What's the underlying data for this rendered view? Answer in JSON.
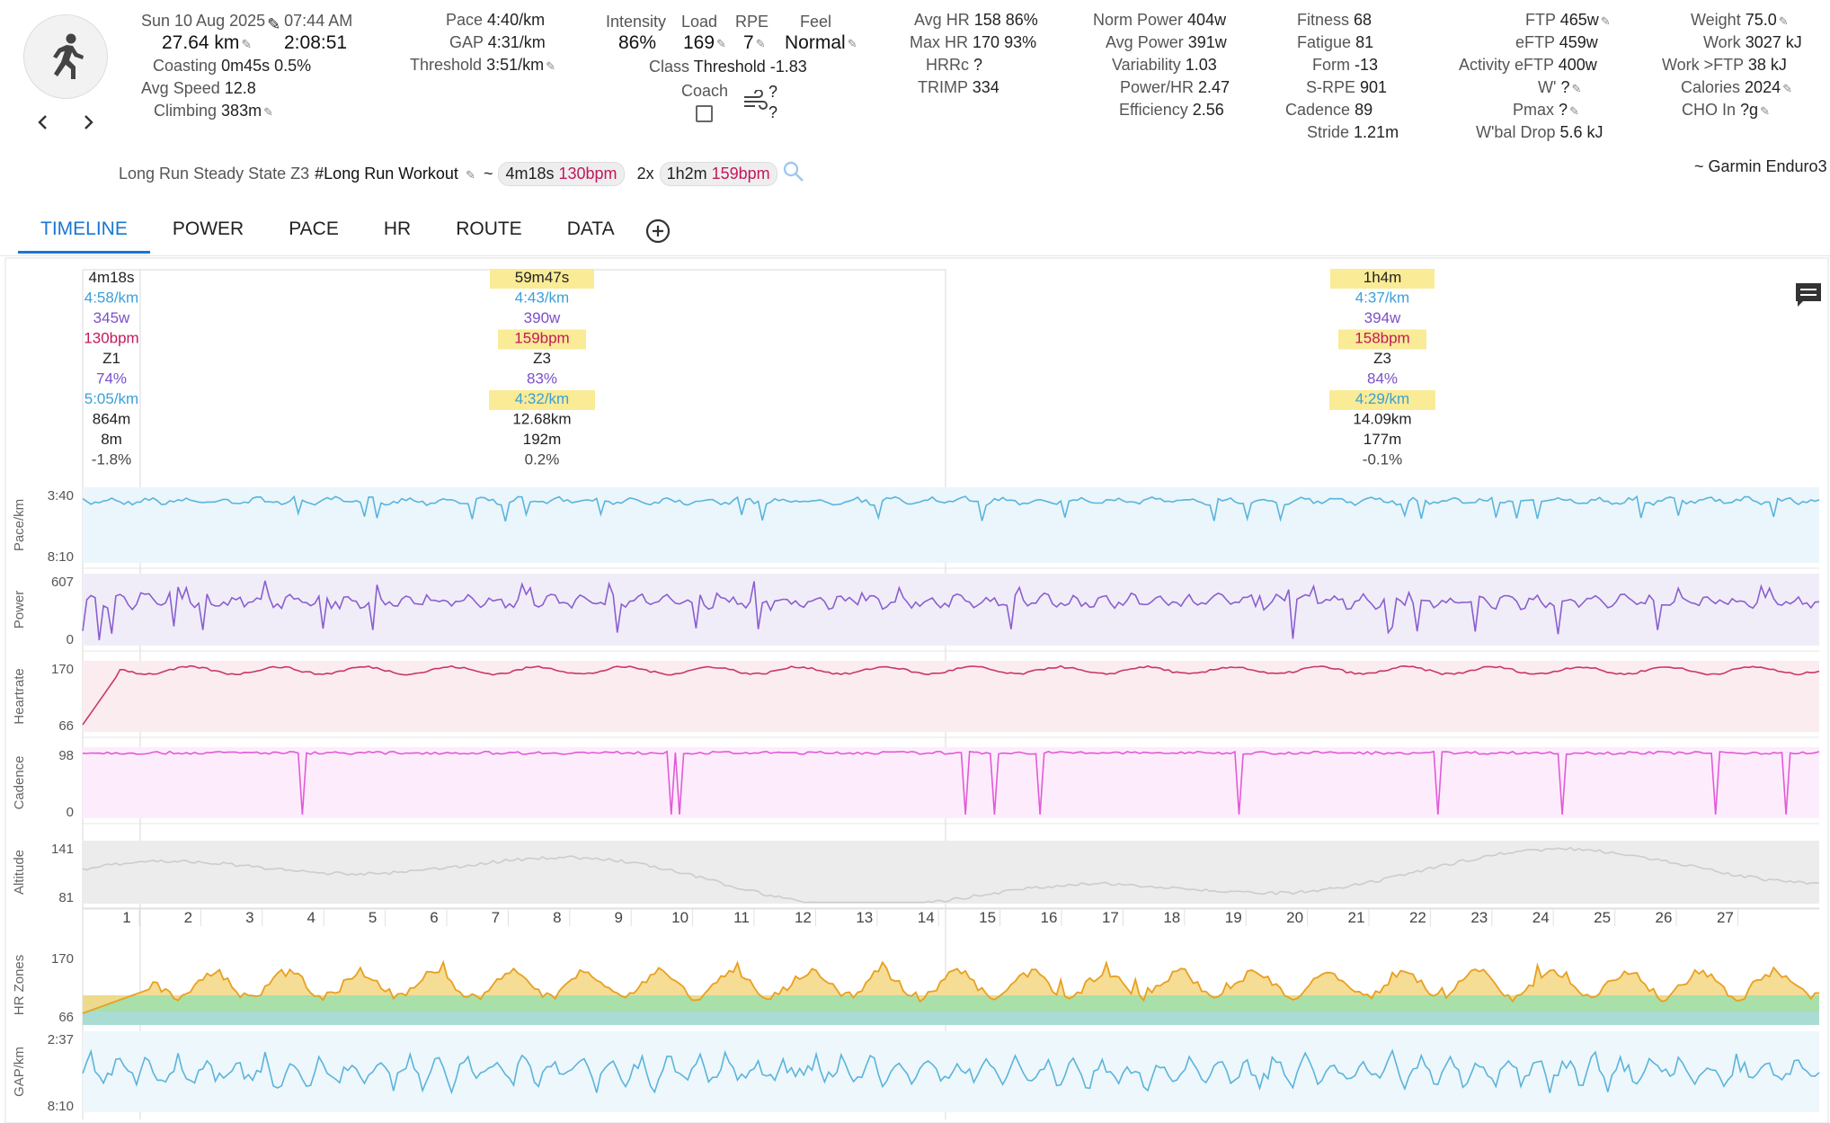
{
  "activity": {
    "date": "Sun 10 Aug 2025",
    "time": "07:44 AM",
    "distance": "27.64 km",
    "duration": "2:08:51",
    "coasting_label": "Coasting",
    "coasting_value": "0m45s 0.5%",
    "avg_speed_label": "Avg Speed",
    "avg_speed_value": "12.8",
    "climbing_label": "Climbing",
    "climbing_value": "383m"
  },
  "pace": {
    "pace_label": "Pace",
    "pace_value": "4:40/km",
    "gap_label": "GAP",
    "gap_value": "4:31/km",
    "threshold_label": "Threshold",
    "threshold_value": "3:51/km"
  },
  "effort": {
    "intensity_label": "Intensity",
    "intensity_value": "86%",
    "load_label": "Load",
    "load_value": "169",
    "rpe_label": "RPE",
    "rpe_value": "7",
    "feel_label": "Feel",
    "feel_value": "Normal",
    "class_label": "Class",
    "class_value": "Threshold -1.83",
    "coach_label": "Coach",
    "q1": "?",
    "q2": "?"
  },
  "hr": {
    "avg_label": "Avg HR",
    "avg_value": "158 86%",
    "max_label": "Max HR",
    "max_value": "170 93%",
    "hrrc_label": "HRRc",
    "hrrc_value": "?",
    "trimp_label": "TRIMP",
    "trimp_value": "334"
  },
  "power": {
    "norm_label": "Norm Power",
    "norm_value": "404w",
    "avg_label": "Avg Power",
    "avg_value": "391w",
    "var_label": "Variability",
    "var_value": "1.03",
    "phr_label": "Power/HR",
    "phr_value": "2.47",
    "eff_label": "Efficiency",
    "eff_value": "2.56"
  },
  "fitness": {
    "fitness_label": "Fitness",
    "fitness_value": "68",
    "fatigue_label": "Fatigue",
    "fatigue_value": "81",
    "form_label": "Form",
    "form_value": "-13",
    "srpe_label": "S-RPE",
    "srpe_value": "901",
    "cadence_label": "Cadence",
    "cadence_value": "89",
    "stride_label": "Stride",
    "stride_value": "1.21m"
  },
  "ftp": {
    "ftp_label": "FTP",
    "ftp_value": "465w",
    "eftp_label": "eFTP",
    "eftp_value": "459w",
    "aeftp_label": "Activity eFTP",
    "aeftp_value": "400w",
    "wprime_label": "W'",
    "wprime_value": "?",
    "pmax_label": "Pmax",
    "pmax_value": "?",
    "wbal_label": "W'bal Drop",
    "wbal_value": "5.6 kJ"
  },
  "body": {
    "weight_label": "Weight",
    "weight_value": "75.0",
    "work_label": "Work",
    "work_value": "3027 kJ",
    "workftp_label": "Work >FTP",
    "workftp_value": "38 kJ",
    "cal_label": "Calories",
    "cal_value": "2024",
    "cho_label": "CHO In",
    "cho_value": "?g"
  },
  "workout": {
    "name": "Long Run Steady State Z3",
    "tag": "#Long Run Workout",
    "tilde": "~",
    "step1_dur": "4m18s",
    "step1_hr": "130bpm",
    "step2_rep": "2x",
    "step2_dur": "1h2m",
    "step2_hr": "159bpm",
    "device": "~ Garmin Enduro3"
  },
  "tabs": [
    "TIMELINE",
    "POWER",
    "PACE",
    "HR",
    "ROUTE",
    "DATA"
  ],
  "intervals": [
    {
      "time": "4m18s",
      "pace": "4:58/km",
      "power": "345w",
      "hr": "130bpm",
      "zone": "Z1",
      "pct": "74%",
      "gap": "5:05/km",
      "dist": "864m",
      "elev": "8m",
      "grade": "-1.8%",
      "hl": false
    },
    {
      "time": "59m47s",
      "pace": "4:43/km",
      "power": "390w",
      "hr": "159bpm",
      "zone": "Z3",
      "pct": "83%",
      "gap": "4:32/km",
      "dist": "12.68km",
      "elev": "192m",
      "grade": "0.2%",
      "hl": true
    },
    {
      "time": "1h4m",
      "pace": "4:37/km",
      "power": "394w",
      "hr": "158bpm",
      "zone": "Z3",
      "pct": "84%",
      "gap": "4:29/km",
      "dist": "14.09km",
      "elev": "177m",
      "grade": "-0.1%",
      "hl": true
    }
  ],
  "panels": [
    {
      "label": "Pace/km",
      "top": "3:40",
      "bottom": "8:10",
      "color": "#5ab4dc",
      "fill": "#eaf6fb"
    },
    {
      "label": "Power",
      "top": "607",
      "bottom": "0",
      "color": "#8a5fd0",
      "fill": "#f1edf8"
    },
    {
      "label": "Heartrate",
      "top": "170",
      "bottom": "66",
      "color": "#c9376b",
      "fill": "#fbecef"
    },
    {
      "label": "Cadence",
      "top": "98",
      "bottom": "0",
      "color": "#e25ad8",
      "fill": "#fdedfc"
    },
    {
      "label": "Altitude",
      "top": "141",
      "bottom": "81",
      "color": "#cccccc",
      "fill": "#ececec"
    }
  ],
  "km_ticks": [
    "1",
    "2",
    "3",
    "4",
    "5",
    "6",
    "7",
    "8",
    "9",
    "10",
    "11",
    "12",
    "13",
    "14",
    "15",
    "16",
    "17",
    "18",
    "19",
    "20",
    "21",
    "22",
    "23",
    "24",
    "25",
    "26",
    "27"
  ],
  "hrzones": {
    "label": "HR Zones",
    "top": "170",
    "bottom": "66"
  },
  "gap": {
    "label": "GAP/km",
    "top": "2:37",
    "bottom": "8:10",
    "color": "#5ab4dc"
  },
  "colors": {
    "accent": "#1976d2",
    "pace": "#5ab4dc",
    "power": "#8a5fd0",
    "hr": "#c9376b",
    "highlight": "#faeb96"
  },
  "icons": {
    "activity": "runner-icon",
    "prev": "chevron-left-icon",
    "next": "chevron-right-icon",
    "search": "search-icon",
    "add": "add-circle-icon",
    "comment": "comment-icon",
    "wind": "wind-icon"
  }
}
